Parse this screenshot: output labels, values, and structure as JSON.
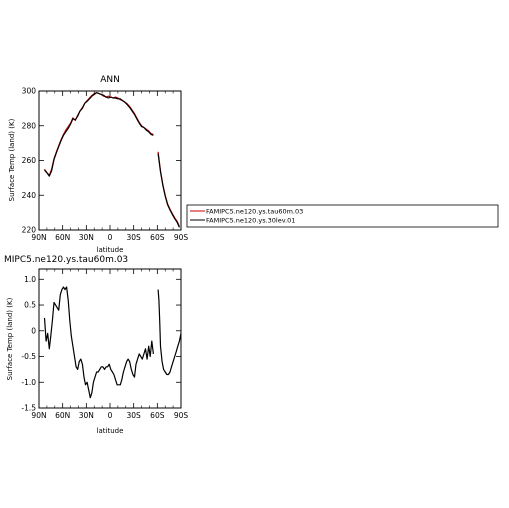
{
  "chart_data": [
    {
      "type": "line",
      "title": "ANN",
      "xlabel": "latitude",
      "ylabel": "Surface Temp (land) (K)",
      "x_ticks": [
        "90N",
        "60N",
        "30N",
        "0",
        "30S",
        "60S",
        "90S"
      ],
      "y_ticks": [
        "220",
        "240",
        "260",
        "280",
        "300"
      ],
      "xlim": [
        90,
        -90
      ],
      "ylim": [
        220,
        300
      ],
      "grid": false,
      "legend_position": "right",
      "series": [
        {
          "name": "FAMIPC5.ne120.ys.tau60m.03",
          "color": "#cc0000",
          "segments": [
            {
              "x": [
                83,
                80,
                77,
                74,
                71,
                68,
                65,
                62,
                59,
                56,
                53,
                50,
                47,
                44,
                41,
                38,
                35,
                32,
                29,
                26,
                23,
                20,
                17,
                14,
                11,
                8,
                5,
                2,
                -1,
                -4,
                -7,
                -10,
                -13,
                -16,
                -19,
                -22,
                -25,
                -28,
                -31,
                -34,
                -37,
                -40,
                -43,
                -46,
                -49,
                -52,
                -55
              ],
              "y": [
                255,
                253,
                251.5,
                255,
                261,
                265,
                268.5,
                272,
                275,
                277.5,
                279.5,
                281.5,
                284.5,
                283,
                286,
                288.5,
                290.5,
                293,
                294.5,
                296,
                297.5,
                298.5,
                299,
                298.5,
                298,
                297,
                296.5,
                297,
                296.5,
                296,
                296.5,
                296,
                295,
                294.5,
                293.5,
                292.5,
                291,
                289,
                287,
                284.5,
                282,
                280,
                279,
                278,
                277,
                275.5,
                275
              ]
            },
            {
              "x": [
                -61,
                -64,
                -67,
                -70,
                -73,
                -76,
                -79,
                -82,
                -85,
                -88
              ],
              "y": [
                265,
                254,
                246,
                240,
                235,
                232,
                229.5,
                227,
                225,
                222
              ]
            }
          ]
        },
        {
          "name": "FAMIPC5.ne120.ys.30lev.01",
          "color": "#000000",
          "segments": [
            {
              "x": [
                83,
                80,
                77,
                74,
                71,
                68,
                65,
                62,
                59,
                56,
                53,
                50,
                47,
                44,
                41,
                38,
                35,
                32,
                29,
                26,
                23,
                20,
                17,
                14,
                11,
                8,
                5,
                2,
                -1,
                -4,
                -7,
                -10,
                -13,
                -16,
                -19,
                -22,
                -25,
                -28,
                -31,
                -34,
                -37,
                -40,
                -43,
                -46,
                -49,
                -52,
                -55
              ],
              "y": [
                254.5,
                253,
                251,
                254,
                260.5,
                264.5,
                268,
                271.5,
                274.5,
                276.5,
                278.5,
                281,
                284,
                283.5,
                285.5,
                288.5,
                290,
                293,
                294,
                295.5,
                297,
                298,
                299,
                298.5,
                298,
                297.5,
                296.5,
                296,
                296.5,
                296,
                296,
                295.5,
                295.5,
                294.5,
                293.5,
                292,
                290.5,
                288.5,
                286.5,
                284,
                281.5,
                279.5,
                279,
                277.5,
                276.5,
                275,
                274.5
              ]
            },
            {
              "x": [
                -61,
                -64,
                -67,
                -70,
                -73,
                -76,
                -79,
                -82,
                -85,
                -88
              ],
              "y": [
                264,
                253.5,
                245.5,
                239.5,
                234.5,
                231.5,
                229,
                226.5,
                224.5,
                221.5
              ]
            }
          ]
        }
      ]
    },
    {
      "type": "line",
      "title": "MIPC5.ne120.ys.tau60m.03",
      "xlabel": "latitude",
      "ylabel": "Surface Temp (land) (K)",
      "x_ticks": [
        "90N",
        "60N",
        "30N",
        "0",
        "30S",
        "60S",
        "90S"
      ],
      "y_ticks": [
        "-1.5",
        "-1.0",
        "-0.5",
        "0",
        "0.5",
        "1.0"
      ],
      "xlim": [
        90,
        -90
      ],
      "ylim": [
        -1.5,
        1.2
      ],
      "grid": false,
      "series": [
        {
          "color": "#000000",
          "segments": [
            {
              "x": [
                83,
                81,
                79,
                77,
                75,
                73,
                71,
                69,
                67,
                65,
                63,
                61,
                59,
                57,
                55,
                53,
                51,
                49,
                47,
                45,
                43,
                41,
                39,
                37,
                35,
                33,
                31,
                29,
                27,
                25,
                23,
                21,
                19,
                17,
                15,
                13,
                11,
                9,
                7,
                5,
                3,
                1,
                -1,
                -3,
                -5,
                -7,
                -9,
                -11,
                -13,
                -15,
                -17,
                -19,
                -21,
                -23,
                -25,
                -27,
                -29,
                -31,
                -33,
                -35,
                -37,
                -39,
                -41,
                -43,
                -45,
                -47,
                -49,
                -51,
                -53,
                -55
              ],
              "y": [
                0.25,
                -0.2,
                -0.05,
                -0.35,
                -0.1,
                0.2,
                0.55,
                0.5,
                0.45,
                0.4,
                0.7,
                0.8,
                0.85,
                0.8,
                0.85,
                0.6,
                0.2,
                -0.1,
                -0.3,
                -0.5,
                -0.7,
                -0.75,
                -0.6,
                -0.55,
                -0.65,
                -0.9,
                -1.05,
                -1.0,
                -1.15,
                -1.3,
                -1.2,
                -1.0,
                -0.9,
                -0.8,
                -0.8,
                -0.75,
                -0.7,
                -0.7,
                -0.75,
                -0.7,
                -0.7,
                -0.65,
                -0.75,
                -0.8,
                -0.85,
                -0.95,
                -1.05,
                -1.05,
                -1.05,
                -0.95,
                -0.8,
                -0.7,
                -0.6,
                -0.55,
                -0.6,
                -0.75,
                -0.85,
                -0.9,
                -0.65,
                -0.55,
                -0.45,
                -0.5,
                -0.55,
                -0.45,
                -0.35,
                -0.55,
                -0.3,
                -0.5,
                -0.2,
                -0.45
              ]
            },
            {
              "x": [
                -61,
                -62,
                -63,
                -64,
                -66,
                -68,
                -70,
                -72,
                -74,
                -76,
                -78,
                -80,
                -82,
                -84,
                -86,
                -88,
                -90
              ],
              "y": [
                0.8,
                0.6,
                0.2,
                -0.3,
                -0.6,
                -0.75,
                -0.8,
                -0.85,
                -0.85,
                -0.8,
                -0.7,
                -0.6,
                -0.5,
                -0.4,
                -0.3,
                -0.2,
                -0.05
              ]
            }
          ]
        }
      ]
    }
  ]
}
